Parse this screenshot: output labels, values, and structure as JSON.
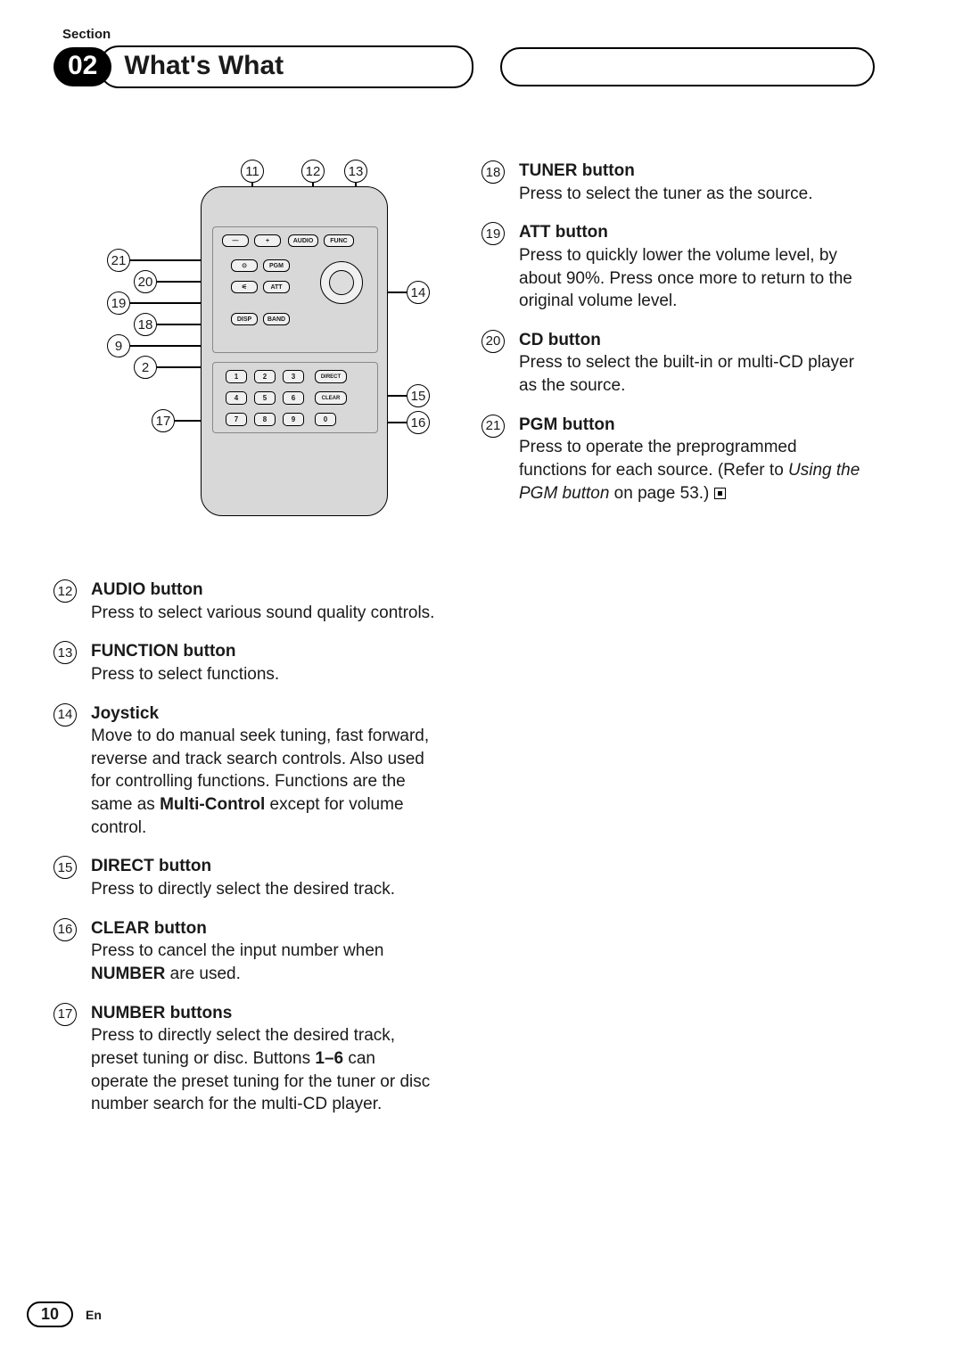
{
  "header": {
    "section_label": "Section",
    "section_number": "02",
    "title": "What's What"
  },
  "remote": {
    "buttons": {
      "minus": "—",
      "plus": "+",
      "audio": "AUDIO",
      "func": "FUNC",
      "cd": "⊙",
      "pgm": "PGM",
      "tuner": "⚟",
      "att": "ATT",
      "disp": "DISP",
      "band": "BAND",
      "direct": "DIRECT",
      "clear": "CLEAR"
    },
    "numbers": [
      "1",
      "2",
      "3",
      "4",
      "5",
      "6",
      "7",
      "8",
      "9",
      "0"
    ]
  },
  "callouts": {
    "c11": "11",
    "c12": "12",
    "c13": "13",
    "c21": "21",
    "c20": "20",
    "c19": "19",
    "c18": "18",
    "c9": "9",
    "c2": "2",
    "c14": "14",
    "c15": "15",
    "c16": "16",
    "c17": "17"
  },
  "items_left": [
    {
      "num": "12",
      "title": "AUDIO button",
      "desc": "Press to select various sound quality controls."
    },
    {
      "num": "13",
      "title": "FUNCTION button",
      "desc": "Press to select functions."
    },
    {
      "num": "14",
      "title": "Joystick",
      "desc": "Move to do manual seek tuning, fast forward, reverse and track search controls. Also used for controlling functions. Functions are the same as <b>Multi-Control</b> except for volume control."
    },
    {
      "num": "15",
      "title": "DIRECT button",
      "desc": "Press to directly select the desired track."
    },
    {
      "num": "16",
      "title": "CLEAR button",
      "desc": "Press to cancel the input number when <b>NUMBER</b> are used."
    },
    {
      "num": "17",
      "title": "NUMBER buttons",
      "desc": "Press to directly select the desired track, preset tuning or disc. Buttons <b>1–6</b> can operate the preset tuning for the tuner or disc number search for the multi-CD player."
    }
  ],
  "items_right": [
    {
      "num": "18",
      "title": "TUNER button",
      "desc": "Press to select the tuner as the source."
    },
    {
      "num": "19",
      "title": "ATT button",
      "desc": "Press to quickly lower the volume level, by about 90%. Press once more to return to the original volume level."
    },
    {
      "num": "20",
      "title": "CD button",
      "desc": "Press to select the built-in or multi-CD player as the source."
    },
    {
      "num": "21",
      "title": "PGM button",
      "desc": "Press to operate the preprogrammed functions for each source. (Refer to <i>Using the PGM button</i> on page 53.)",
      "end": true
    }
  ],
  "footer": {
    "page": "10",
    "lang": "En"
  }
}
